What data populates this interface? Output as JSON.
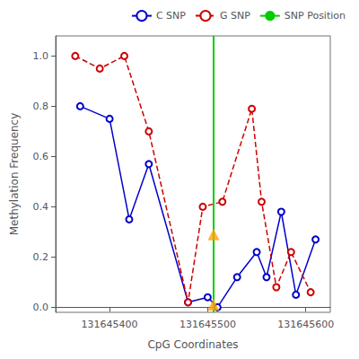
{
  "chart_data": {
    "type": "line",
    "xlabel": "CpG Coordinates",
    "ylabel": "Methylation Frequency",
    "xlim": [
      131645345,
      131645625
    ],
    "xticks": [
      131645400,
      131645500,
      131645600
    ],
    "ylim": [
      -0.02,
      1.08
    ],
    "yticks": [
      {
        "value": 0.0,
        "label": "0.0"
      },
      0.2,
      0.4,
      0.6,
      0.8,
      {
        "value": 1.0,
        "label": "1.0"
      }
    ],
    "grid": false,
    "legend": "upper right",
    "series": [
      {
        "name": "C SNP",
        "type": "line",
        "color": "#0000cc",
        "marker": "circle",
        "line_style": "solid",
        "x": [
          131645370,
          131645400,
          131645420,
          131645440,
          131645480,
          131645500,
          131645510,
          131645530,
          131645550,
          131645560,
          131645575,
          131645590,
          131645610
        ],
        "values": [
          0.8,
          0.75,
          0.35,
          0.57,
          0.02,
          0.04,
          0.0,
          0.12,
          0.22,
          0.12,
          0.38,
          0.05,
          0.27
        ]
      },
      {
        "name": "G SNP",
        "type": "line",
        "color": "#cc0000",
        "marker": "circle",
        "line_style": "dashed",
        "x": [
          131645365,
          131645390,
          131645415,
          131645440,
          131645480,
          131645495,
          131645515,
          131645545,
          131645555,
          131645570,
          131645585,
          131645605
        ],
        "values": [
          1.0,
          0.95,
          1.0,
          0.7,
          0.02,
          0.4,
          0.42,
          0.79,
          0.42,
          0.08,
          0.22,
          0.06
        ]
      },
      {
        "name": "SNP Position",
        "type": "vline",
        "color": "#00cc00",
        "line_style": "solid",
        "x": 131645506
      },
      {
        "type": "scatter",
        "color": "#FFA500",
        "marker": "triangle",
        "x": [
          131645506,
          131645506
        ],
        "values": [
          0.29,
          0.01
        ]
      }
    ]
  }
}
